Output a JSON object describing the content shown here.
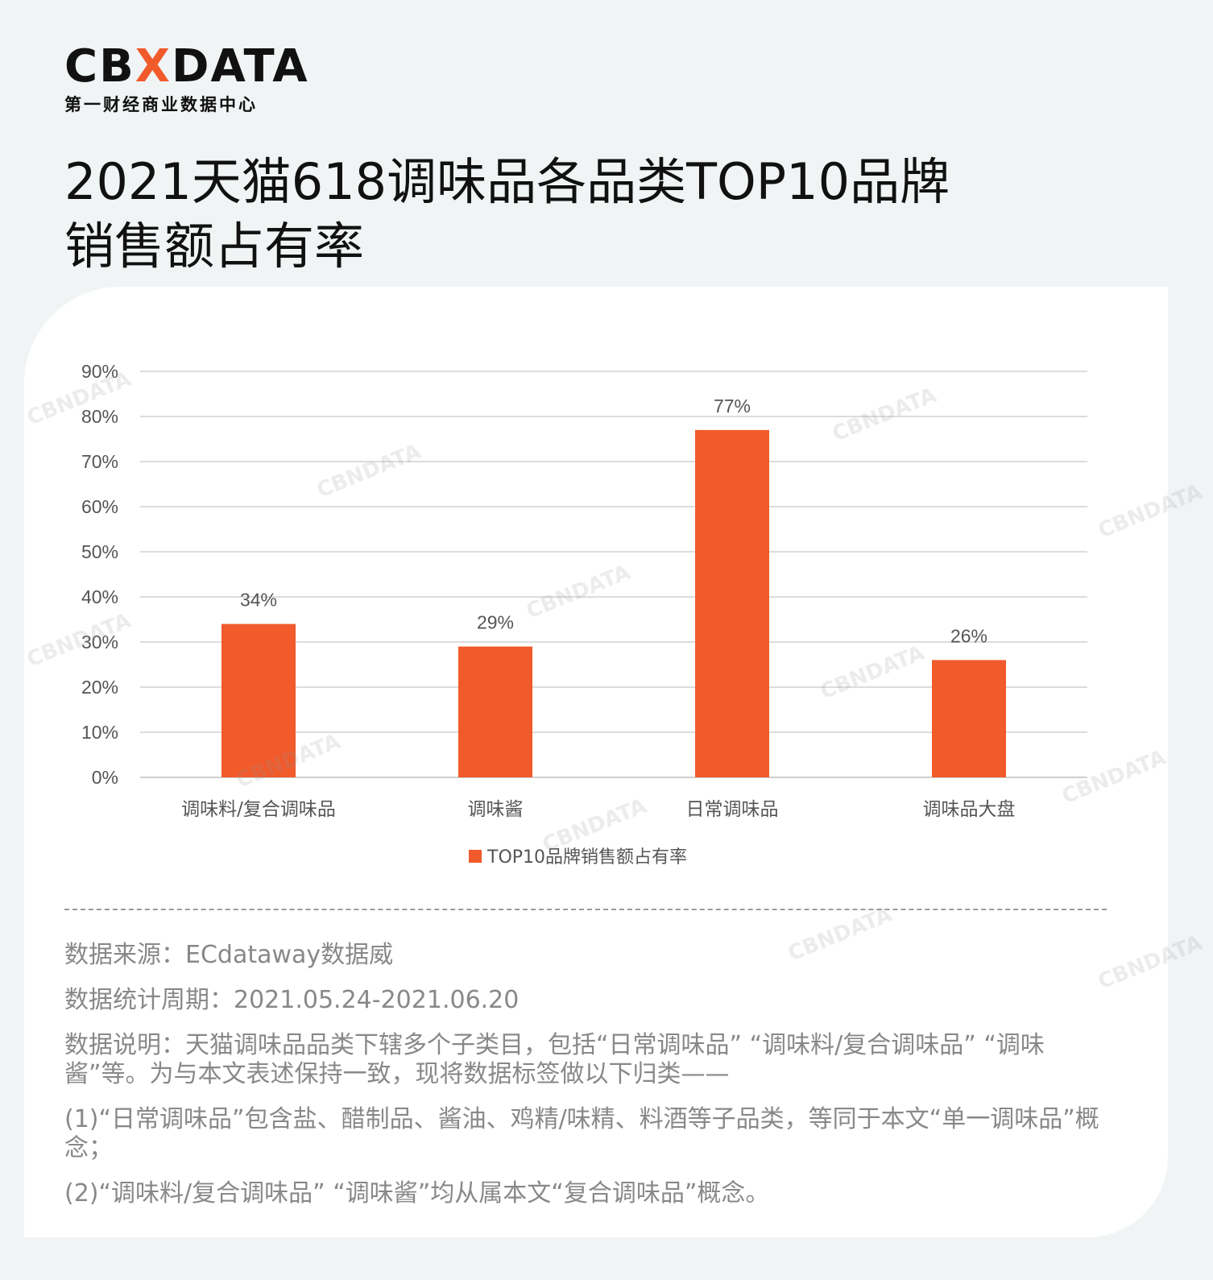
{
  "brand": {
    "logo_prefix": "CB",
    "logo_x": "X",
    "logo_suffix": "DATA",
    "subtitle": "第一财经商业数据中心"
  },
  "title_line1": "2021天猫618调味品各品类TOP10品牌",
  "title_line2": "销售额占有率",
  "chart_data": {
    "type": "bar",
    "categories": [
      "调味料/复合调味品",
      "调味酱",
      "日常调味品",
      "调味品大盘"
    ],
    "series": [
      {
        "name": "TOP10品牌销售额占有率",
        "values": [
          34,
          29,
          77,
          26
        ]
      }
    ],
    "value_labels": [
      "34%",
      "29%",
      "77%",
      "26%"
    ],
    "ylim": [
      0,
      90
    ],
    "y_ticks": [
      "0%",
      "10%",
      "20%",
      "30%",
      "40%",
      "50%",
      "60%",
      "70%",
      "80%",
      "90%"
    ],
    "grid": true,
    "legend_position": "bottom",
    "bar_color": "#f15a2b"
  },
  "notes": {
    "source": "数据来源：ECdataway数据威",
    "period": "数据统计周期：2021.05.24-2021.06.20",
    "desc": "数据说明：天猫调味品品类下辖多个子类目，包括“日常调味品” “调味料/复合调味品” “调味酱”等。为与本文表述保持一致，现将数据标签做以下归类——",
    "item1": "(1)“日常调味品”包含盐、醋制品、酱油、鸡精/味精、料酒等子品类，等同于本文“单一调味品”概念；",
    "item2": "(2)“调味料/复合调味品” “调味酱”均从属本文“复合调味品”概念。"
  },
  "watermark_text": "CBNDATA"
}
